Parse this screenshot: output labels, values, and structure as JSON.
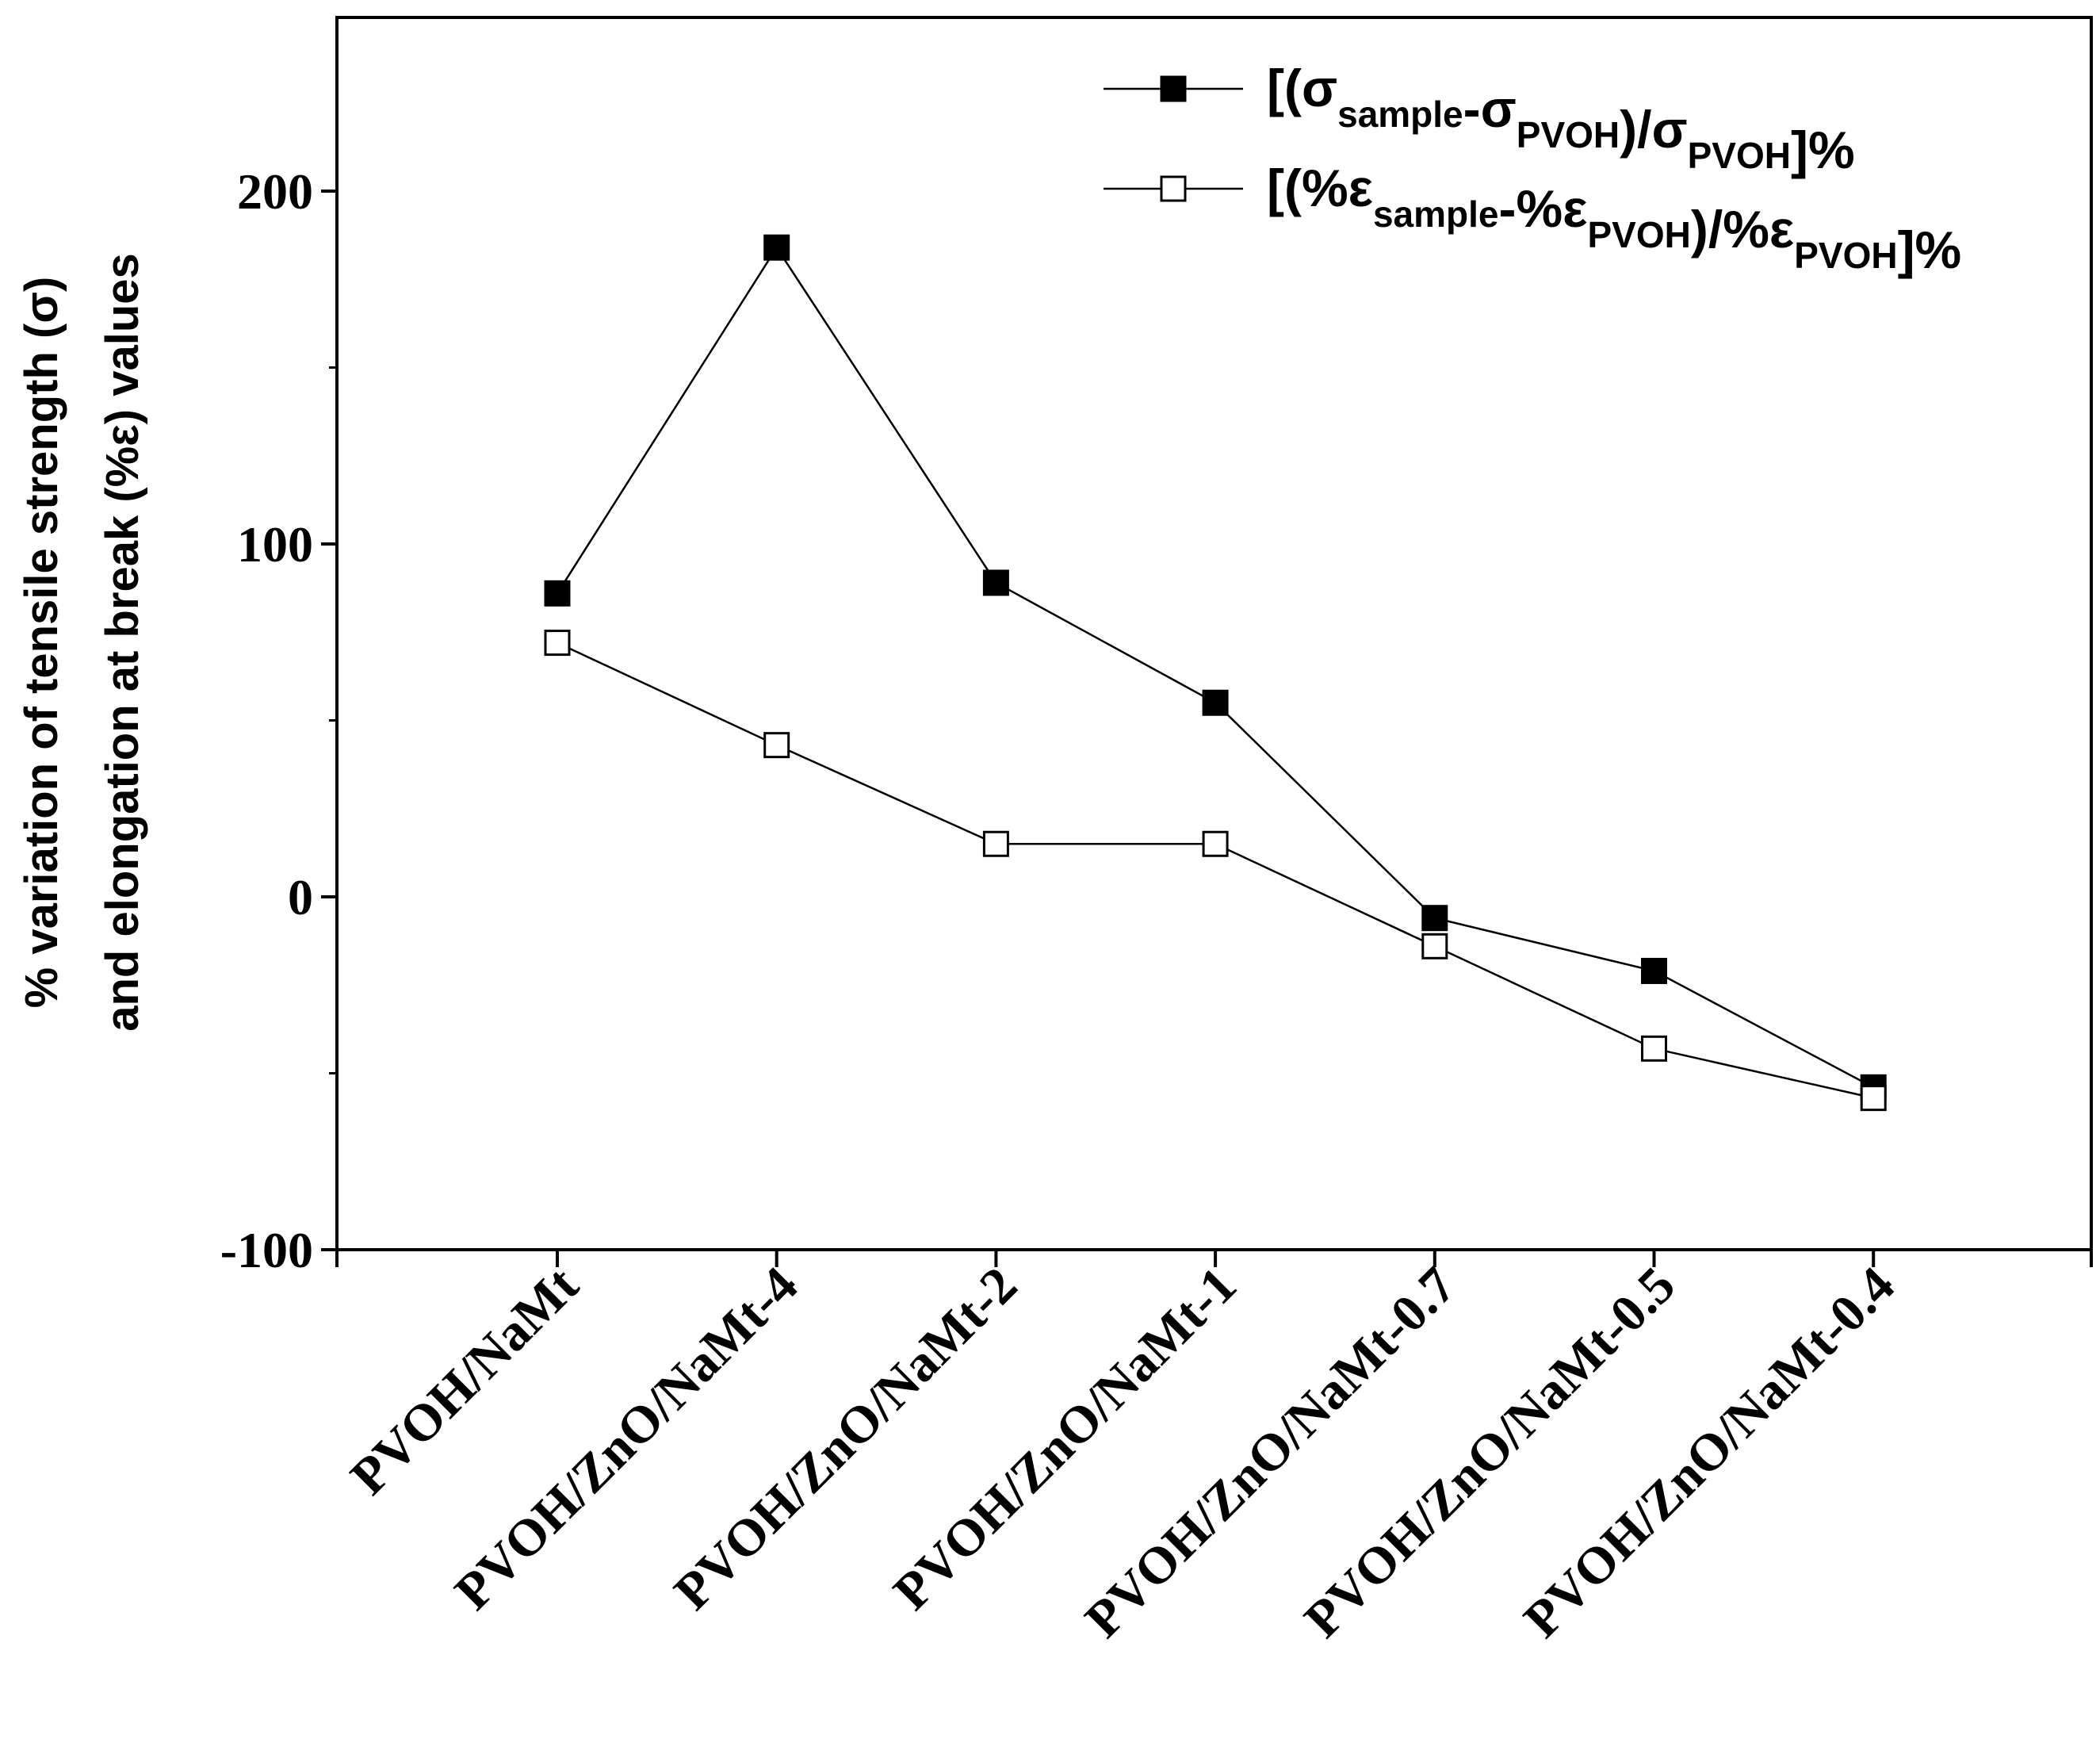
{
  "chart_data": {
    "type": "line",
    "title": "",
    "xlabel": "",
    "ylabel_line1": "% variation of tensile strength (σ)",
    "ylabel_line2": "and elongation at break (%ε) values",
    "ylim": [
      -100,
      250
    ],
    "yticks": [
      -100,
      0,
      100,
      200
    ],
    "ytick_labels": [
      "-100",
      "0",
      "100",
      "200"
    ],
    "grid": false,
    "legend_position": "top-right",
    "categories": [
      "PVOH/NaMt",
      "PVOH/ZnO/NaMt-4",
      "PVOH/ZnO/NaMt-2",
      "PVOH/ZnO/NaMt-1",
      "PVOH/ZnO/NaMt-0.7",
      "PVOH/ZnO/NaMt-0.5",
      "PVOH/ZnO/NaMt-0.4"
    ],
    "series": [
      {
        "name": "[(σsample-σPVOH)/σPVOH]%",
        "legend_parts": [
          {
            "t": "[(σ",
            "sub": false
          },
          {
            "t": "sample",
            "sub": true
          },
          {
            "t": "-σ",
            "sub": false
          },
          {
            "t": "PVOH",
            "sub": true
          },
          {
            "t": ")/σ",
            "sub": false
          },
          {
            "t": "PVOH",
            "sub": true
          },
          {
            "t": "]%",
            "sub": false
          }
        ],
        "marker": "filled-square",
        "color": "#000000",
        "values": [
          86,
          184,
          89,
          55,
          -6,
          -21,
          -54
        ]
      },
      {
        "name": "[(%εsample-%εPVOH)/%εPVOH]%",
        "legend_parts": [
          {
            "t": "[(%ε",
            "sub": false
          },
          {
            "t": "sample",
            "sub": true
          },
          {
            "t": "-%ε",
            "sub": false
          },
          {
            "t": "PVOH",
            "sub": true
          },
          {
            "t": ")/%ε",
            "sub": false
          },
          {
            "t": "PVOH",
            "sub": true
          },
          {
            "t": "]%",
            "sub": false
          }
        ],
        "marker": "open-square",
        "color": "#000000",
        "values": [
          72,
          43,
          15,
          15,
          -14,
          -43,
          -57
        ]
      }
    ]
  }
}
